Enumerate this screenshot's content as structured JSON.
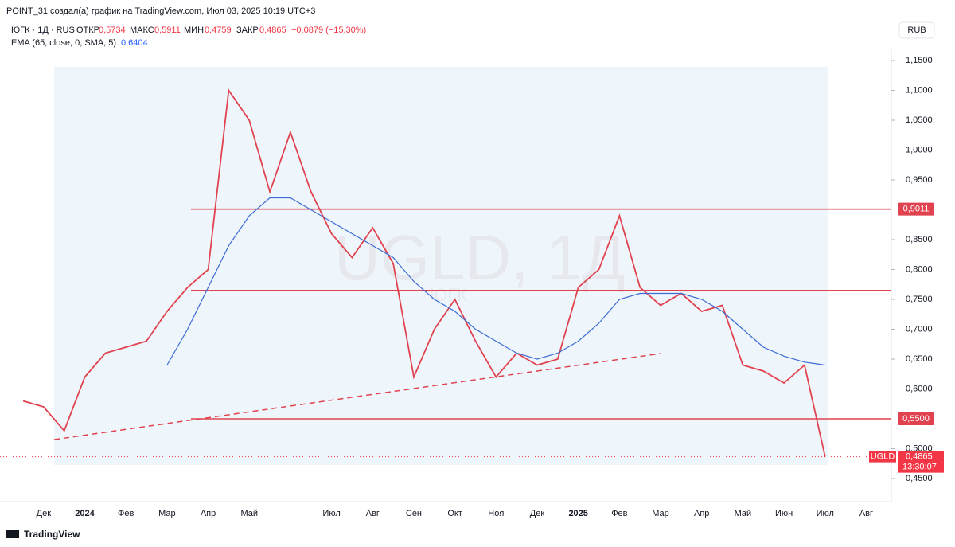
{
  "header": {
    "author": "POINT_31 создал(а) график на TradingView.com, Июл 03, 2025 10:19 UTC+3",
    "symbol": "ЮГК · 1Д · RUS",
    "open_label": "ОТКР",
    "open": "0,5734",
    "high_label": "МАКС",
    "high": "0,5911",
    "low_label": "МИН",
    "low": "0,4759",
    "close_label": "ЗАКР",
    "close": "0,4865",
    "change": "−0,0879 (−15,30%)",
    "indicator": "EMA (65, close, 0, SMA, 5)",
    "indicator_value": "0,6404",
    "currency": "RUB",
    "watermark": "UGLD, 1Д",
    "watermark_sub": "ЮГК",
    "footer": "TradingView"
  },
  "chart_data": {
    "type": "line",
    "categories": [
      null,
      "Дек",
      null,
      "2024",
      null,
      "Фев",
      null,
      "Мар",
      null,
      "Апр",
      null,
      "Май",
      null,
      null,
      null,
      "Июл",
      null,
      "Авг",
      null,
      "Сен",
      null,
      "Окт",
      null,
      "Ноя",
      null,
      "Дек",
      null,
      "2025",
      null,
      "Фев",
      null,
      "Мар",
      null,
      "Апр",
      null,
      "Май",
      null,
      "Июн",
      null,
      "Июл",
      null,
      "Авг"
    ],
    "series": [
      {
        "name": "ЮГК",
        "color": "#e0434f",
        "values": [
          0.58,
          0.57,
          0.53,
          0.62,
          0.66,
          0.67,
          0.68,
          0.73,
          0.77,
          0.8,
          1.1,
          1.05,
          0.93,
          1.03,
          0.93,
          0.86,
          0.82,
          0.87,
          0.81,
          0.62,
          0.7,
          0.75,
          0.68,
          0.62,
          0.66,
          0.64,
          0.65,
          0.77,
          0.8,
          0.89,
          0.77,
          0.74,
          0.76,
          0.73,
          0.74,
          0.64,
          0.63,
          0.61,
          0.64,
          0.4865,
          null,
          null
        ]
      },
      {
        "name": "EMA",
        "color": "#3c6bd4",
        "values": [
          null,
          null,
          null,
          null,
          null,
          null,
          null,
          0.64,
          0.7,
          0.77,
          0.84,
          0.89,
          0.92,
          0.92,
          0.9,
          0.88,
          0.86,
          0.84,
          0.82,
          0.78,
          0.75,
          0.73,
          0.7,
          0.68,
          0.66,
          0.65,
          0.66,
          0.68,
          0.71,
          0.75,
          0.76,
          0.76,
          0.76,
          0.75,
          0.73,
          0.7,
          0.67,
          0.655,
          0.645,
          0.64,
          null,
          null
        ]
      }
    ],
    "ylim": [
      0.41,
      1.17
    ],
    "yticks": [
      {
        "value": 1.15,
        "label": "1,1500"
      },
      {
        "value": 1.1,
        "label": "1,1000"
      },
      {
        "value": 1.05,
        "label": "1,0500"
      },
      {
        "value": 1.0,
        "label": "1,0000"
      },
      {
        "value": 0.95,
        "label": "0,9500"
      },
      {
        "value": 0.85,
        "label": "0,8500"
      },
      {
        "value": 0.8,
        "label": "0,8000"
      },
      {
        "value": 0.75,
        "label": "0,7500"
      },
      {
        "value": 0.7,
        "label": "0,7000"
      },
      {
        "value": 0.65,
        "label": "0,6500"
      },
      {
        "value": 0.6,
        "label": "0,6000"
      },
      {
        "value": 0.5,
        "label": "0,5000"
      },
      {
        "value": 0.45,
        "label": "0,4500"
      }
    ],
    "levels": [
      {
        "value": 0.9011,
        "label": "0,9011"
      },
      {
        "value": 0.765
      },
      {
        "value": 0.55,
        "label": "0,5500"
      }
    ],
    "last": {
      "value": 0.4865,
      "label": "0,4865",
      "symbol": "UGLD",
      "countdown": "13:30:07"
    },
    "level_color": "#e0434f"
  }
}
